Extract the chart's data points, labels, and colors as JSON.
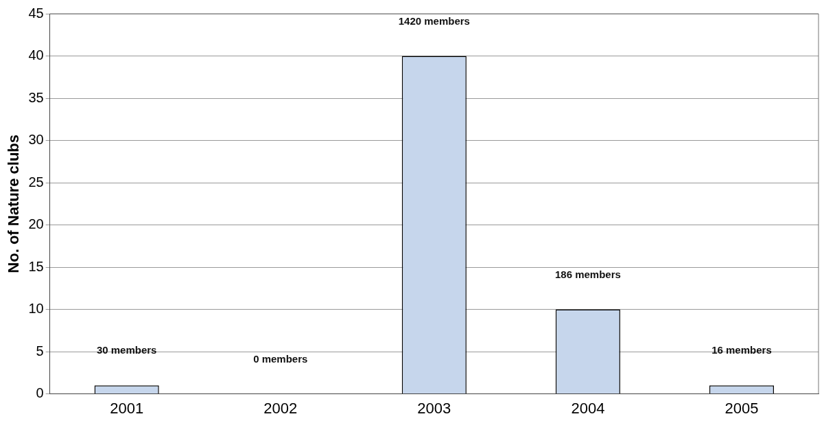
{
  "chart_data": {
    "type": "bar",
    "ylabel": "No. of Nature clubs",
    "categories": [
      "2001",
      "2002",
      "2003",
      "2004",
      "2005"
    ],
    "values": [
      1,
      0,
      40,
      10,
      1
    ],
    "color": "#c6d6ec",
    "ylim": [
      0,
      45
    ],
    "yticks": [
      0,
      5,
      10,
      15,
      20,
      25,
      30,
      35,
      40,
      45
    ],
    "grid": "y",
    "legend": false,
    "annotations": [
      "30 members",
      "0 members",
      "1420 members",
      "186 members",
      "16 members"
    ]
  }
}
